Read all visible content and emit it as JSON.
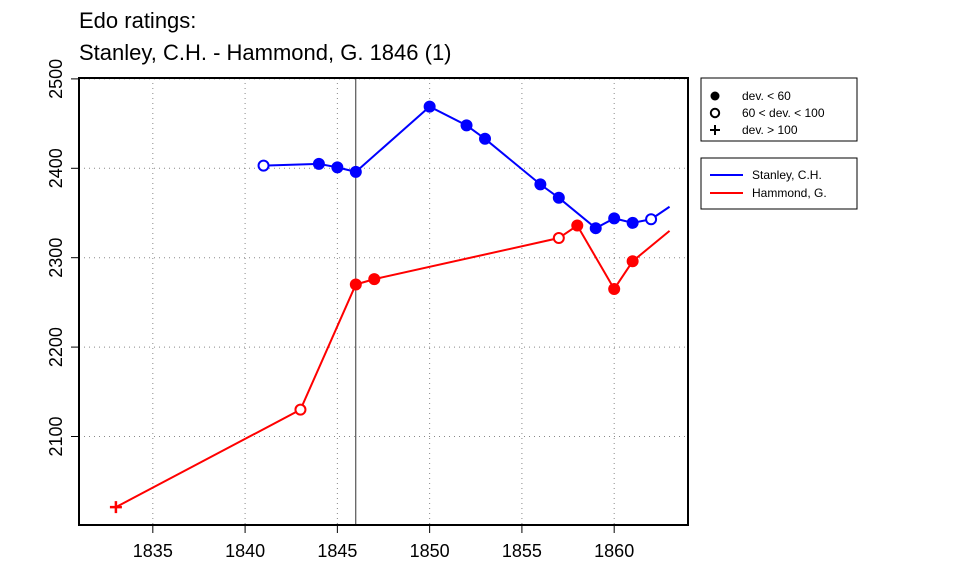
{
  "title": {
    "line1": "Edo ratings:",
    "line2": "Stanley, C.H. - Hammond, G. 1846 (1)"
  },
  "chart_data": {
    "type": "line",
    "title": "Edo ratings: Stanley, C.H. - Hammond, G. 1846 (1)",
    "xlabel": "",
    "ylabel": "",
    "xlim": [
      1831,
      1864
    ],
    "ylim": [
      2001,
      2501
    ],
    "x_ticks": [
      1835,
      1840,
      1845,
      1850,
      1855,
      1860
    ],
    "y_ticks": [
      2100,
      2200,
      2300,
      2400,
      2500
    ],
    "grid": true,
    "marker_vline_x": 1846,
    "series": [
      {
        "name": "Stanley, C.H.",
        "color": "#0000ff",
        "points": [
          {
            "x": 1841,
            "y": 2403,
            "dev": "mid"
          },
          {
            "x": 1844,
            "y": 2405,
            "dev": "low"
          },
          {
            "x": 1845,
            "y": 2401,
            "dev": "low"
          },
          {
            "x": 1846,
            "y": 2396,
            "dev": "low"
          },
          {
            "x": 1850,
            "y": 2469,
            "dev": "low"
          },
          {
            "x": 1852,
            "y": 2448,
            "dev": "low"
          },
          {
            "x": 1853,
            "y": 2433,
            "dev": "low"
          },
          {
            "x": 1856,
            "y": 2382,
            "dev": "low"
          },
          {
            "x": 1857,
            "y": 2367,
            "dev": "low"
          },
          {
            "x": 1859,
            "y": 2333,
            "dev": "low"
          },
          {
            "x": 1860,
            "y": 2344,
            "dev": "low"
          },
          {
            "x": 1861,
            "y": 2339,
            "dev": "low"
          },
          {
            "x": 1862,
            "y": 2343,
            "dev": "mid"
          },
          {
            "x": 1863,
            "y": 2357,
            "dev": "none"
          }
        ]
      },
      {
        "name": "Hammond, G.",
        "color": "#ff0000",
        "points": [
          {
            "x": 1833,
            "y": 2021,
            "dev": "high"
          },
          {
            "x": 1843,
            "y": 2130,
            "dev": "mid"
          },
          {
            "x": 1846,
            "y": 2270,
            "dev": "low"
          },
          {
            "x": 1847,
            "y": 2276,
            "dev": "low"
          },
          {
            "x": 1857,
            "y": 2322,
            "dev": "mid"
          },
          {
            "x": 1858,
            "y": 2336,
            "dev": "low"
          },
          {
            "x": 1860,
            "y": 2265,
            "dev": "low"
          },
          {
            "x": 1861,
            "y": 2296,
            "dev": "low"
          },
          {
            "x": 1863,
            "y": 2330,
            "dev": "none"
          }
        ]
      }
    ],
    "legend_markers": {
      "placement": "top-right, outside plot",
      "entries": [
        {
          "label": "dev. < 60",
          "symbol": "filled-circle"
        },
        {
          "label": "60 < dev. < 100",
          "symbol": "open-circle"
        },
        {
          "label": "dev. > 100",
          "symbol": "plus"
        }
      ]
    },
    "legend_series": {
      "placement": "right, outside plot",
      "entries": [
        {
          "label": "Stanley, C.H.",
          "color": "#0000ff"
        },
        {
          "label": "Hammond, G.",
          "color": "#ff0000"
        }
      ]
    }
  }
}
